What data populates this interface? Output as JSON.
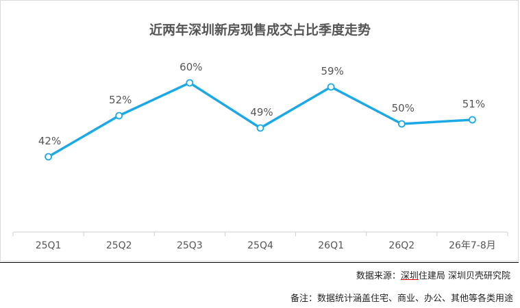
{
  "chart_data": {
    "type": "line",
    "title": "近两年深圳新房现售成交占比季度走势",
    "categories": [
      "25Q1",
      "25Q2",
      "25Q3",
      "25Q4",
      "26Q1",
      "26Q2",
      "26年7-8月"
    ],
    "series": [
      {
        "values": [
          42,
          52,
          60,
          49,
          59,
          50,
          51
        ]
      }
    ],
    "data_labels": [
      "42%",
      "52%",
      "60%",
      "49%",
      "59%",
      "50%",
      "51%"
    ],
    "value_unit": "%",
    "ylim": [
      0,
      70
    ],
    "grid": false,
    "line_color": "#1aa9e6"
  },
  "footer": {
    "source_prefix": "数据来源：",
    "source_underlined": "深圳",
    "source_rest": "住建局  深圳贝壳研究院",
    "note": "备注：数据统计涵盖住宅、商业、办公、其他等各类用途"
  }
}
